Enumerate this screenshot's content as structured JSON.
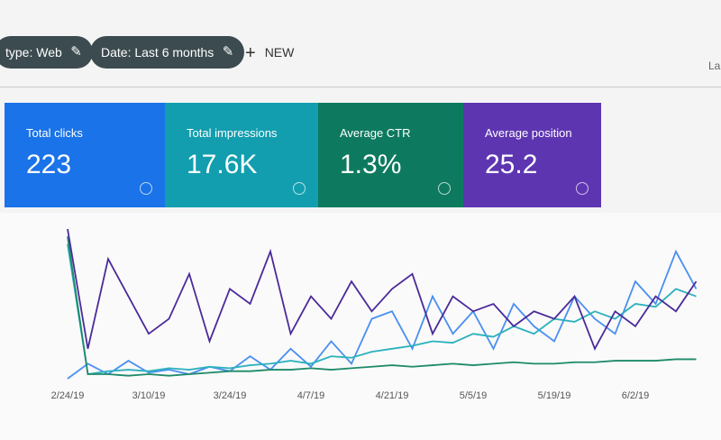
{
  "toolbar": {
    "filters": [
      "type: Web",
      "Date: Last 6 months"
    ],
    "new_button": "NEW",
    "right_text": "La"
  },
  "metrics": [
    {
      "label": "Total clicks",
      "value": "223",
      "color": "#1a73e8"
    },
    {
      "label": "Total impressions",
      "value": "17.6K",
      "color": "#129eaf"
    },
    {
      "label": "Average CTR",
      "value": "1.3%",
      "color": "#0d7a5f"
    },
    {
      "label": "Average position",
      "value": "25.2",
      "color": "#5e35b1"
    }
  ],
  "chart_data": {
    "type": "line",
    "categories": [
      "2/24/19",
      null,
      null,
      null,
      "3/10/19",
      null,
      null,
      null,
      "3/24/19",
      null,
      null,
      null,
      "4/7/19",
      null,
      null,
      null,
      "4/21/19",
      null,
      null,
      null,
      "5/5/19",
      null,
      null,
      null,
      "5/19/19",
      null,
      null,
      null,
      "6/2/19",
      null,
      null,
      null
    ],
    "ylim": [
      0,
      100
    ],
    "series": [
      {
        "name": "Total clicks",
        "color": "#4a8ff0",
        "values": [
          0,
          10,
          3,
          12,
          4,
          6,
          3,
          8,
          5,
          15,
          6,
          20,
          8,
          25,
          10,
          40,
          45,
          20,
          55,
          30,
          45,
          20,
          50,
          35,
          25,
          55,
          40,
          30,
          65,
          50,
          85,
          60
        ]
      },
      {
        "name": "Total impressions",
        "color": "#2bb1bd",
        "values": [
          90,
          3,
          5,
          6,
          5,
          7,
          6,
          8,
          7,
          9,
          10,
          12,
          10,
          15,
          14,
          18,
          20,
          22,
          25,
          24,
          30,
          28,
          35,
          30,
          40,
          38,
          45,
          40,
          50,
          48,
          60,
          55
        ]
      },
      {
        "name": "Average CTR",
        "color": "#1e8a6a",
        "values": [
          95,
          3,
          3,
          2,
          3,
          2,
          3,
          4,
          5,
          5,
          6,
          6,
          7,
          6,
          7,
          8,
          9,
          8,
          9,
          10,
          9,
          10,
          11,
          10,
          10,
          11,
          11,
          12,
          12,
          12,
          13,
          13
        ]
      },
      {
        "name": "Average position",
        "color": "#4b2a9a",
        "values": [
          100,
          20,
          80,
          55,
          30,
          40,
          70,
          25,
          60,
          50,
          85,
          30,
          55,
          40,
          65,
          45,
          60,
          70,
          30,
          55,
          45,
          50,
          35,
          45,
          40,
          55,
          20,
          45,
          35,
          55,
          45,
          65
        ]
      }
    ]
  }
}
